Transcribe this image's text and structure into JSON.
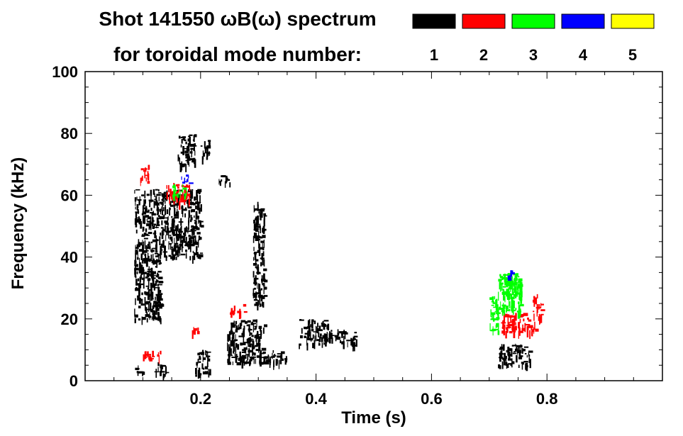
{
  "chart_data": {
    "type": "heatmap",
    "title_line1": "Shot 141550 ωB(ω) spectrum",
    "title_line2": "for toroidal mode number:",
    "xlabel": "Time (s)",
    "ylabel": "Frequency (kHz)",
    "xlim": [
      0.0,
      1.0
    ],
    "ylim": [
      0,
      100
    ],
    "x_ticks": [
      {
        "value": 0.2,
        "label": "0.2"
      },
      {
        "value": 0.4,
        "label": "0.4"
      },
      {
        "value": 0.6,
        "label": "0.6"
      },
      {
        "value": 0.8,
        "label": "0.8"
      }
    ],
    "y_ticks": [
      {
        "value": 0,
        "label": "0"
      },
      {
        "value": 20,
        "label": "20"
      },
      {
        "value": 40,
        "label": "40"
      },
      {
        "value": 60,
        "label": "60"
      },
      {
        "value": 80,
        "label": "80"
      },
      {
        "value": 100,
        "label": "100"
      }
    ],
    "legend": [
      {
        "mode": "1",
        "color": "#000000"
      },
      {
        "mode": "2",
        "color": "#ff0000"
      },
      {
        "mode": "3",
        "color": "#00ff00"
      },
      {
        "mode": "4",
        "color": "#0000ff"
      },
      {
        "mode": "5",
        "color": "#ffff00"
      }
    ],
    "regions": [
      {
        "mode": "1",
        "t": [
          0.085,
          0.13
        ],
        "f": [
          20,
          62
        ]
      },
      {
        "mode": "1",
        "t": [
          0.13,
          0.2
        ],
        "f": [
          40,
          62
        ]
      },
      {
        "mode": "1",
        "t": [
          0.16,
          0.19
        ],
        "f": [
          70,
          80
        ]
      },
      {
        "mode": "1",
        "t": [
          0.2,
          0.215
        ],
        "f": [
          72,
          78
        ]
      },
      {
        "mode": "1",
        "t": [
          0.23,
          0.25
        ],
        "f": [
          64,
          67
        ]
      },
      {
        "mode": "1",
        "t": [
          0.085,
          0.1
        ],
        "f": [
          2,
          5
        ]
      },
      {
        "mode": "1",
        "t": [
          0.12,
          0.14
        ],
        "f": [
          2,
          6
        ]
      },
      {
        "mode": "1",
        "t": [
          0.19,
          0.215
        ],
        "f": [
          2,
          10
        ]
      },
      {
        "mode": "1",
        "t": [
          0.245,
          0.31
        ],
        "f": [
          6,
          20
        ]
      },
      {
        "mode": "1",
        "t": [
          0.3,
          0.35
        ],
        "f": [
          6,
          10
        ]
      },
      {
        "mode": "1",
        "t": [
          0.29,
          0.31
        ],
        "f": [
          24,
          58
        ]
      },
      {
        "mode": "1",
        "t": [
          0.37,
          0.42
        ],
        "f": [
          12,
          20
        ]
      },
      {
        "mode": "1",
        "t": [
          0.42,
          0.45
        ],
        "f": [
          12,
          17
        ]
      },
      {
        "mode": "1",
        "t": [
          0.45,
          0.47
        ],
        "f": [
          11,
          16
        ]
      },
      {
        "mode": "1",
        "t": [
          0.715,
          0.77
        ],
        "f": [
          5,
          12
        ]
      },
      {
        "mode": "2",
        "t": [
          0.095,
          0.11
        ],
        "f": [
          64,
          70
        ]
      },
      {
        "mode": "2",
        "t": [
          0.14,
          0.18
        ],
        "f": [
          58,
          64
        ]
      },
      {
        "mode": "2",
        "t": [
          0.25,
          0.275
        ],
        "f": [
          22,
          25
        ]
      },
      {
        "mode": "2",
        "t": [
          0.1,
          0.13
        ],
        "f": [
          7,
          10
        ]
      },
      {
        "mode": "2",
        "t": [
          0.185,
          0.2
        ],
        "f": [
          16,
          18
        ]
      },
      {
        "mode": "2",
        "t": [
          0.72,
          0.78
        ],
        "f": [
          16,
          22
        ]
      },
      {
        "mode": "2",
        "t": [
          0.775,
          0.79
        ],
        "f": [
          20,
          28
        ]
      },
      {
        "mode": "3",
        "t": [
          0.15,
          0.175
        ],
        "f": [
          60,
          64
        ]
      },
      {
        "mode": "3",
        "t": [
          0.7,
          0.715
        ],
        "f": [
          16,
          28
        ]
      },
      {
        "mode": "3",
        "t": [
          0.715,
          0.755
        ],
        "f": [
          22,
          35
        ]
      },
      {
        "mode": "3",
        "t": [
          0.72,
          0.755
        ],
        "f": [
          28,
          35
        ]
      },
      {
        "mode": "4",
        "t": [
          0.165,
          0.18
        ],
        "f": [
          64,
          67
        ]
      },
      {
        "mode": "4",
        "t": [
          0.73,
          0.74
        ],
        "f": [
          33,
          37
        ]
      }
    ]
  }
}
